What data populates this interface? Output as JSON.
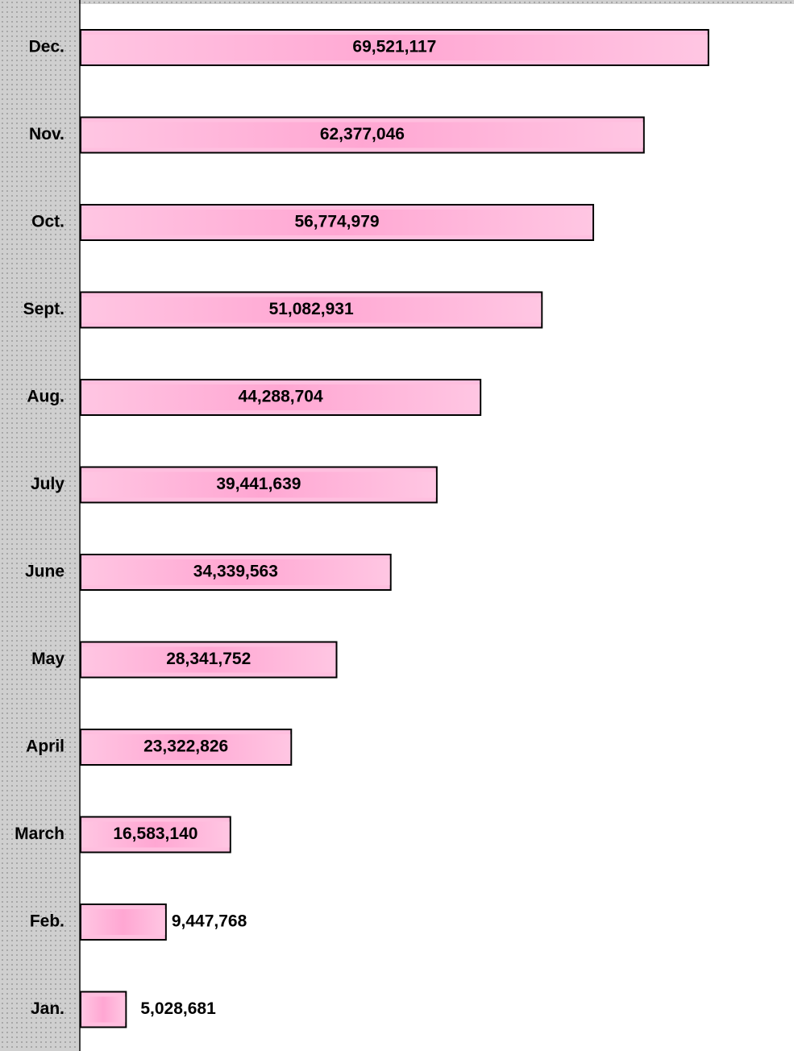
{
  "chart_data": {
    "type": "hbar",
    "categories": [
      "Dec.",
      "Nov.",
      "Oct.",
      "Sept.",
      "Aug.",
      "July",
      "June",
      "May",
      "April",
      "March",
      "Feb.",
      "Jan."
    ],
    "values": [
      69521117,
      62377046,
      56774979,
      51082931,
      44288704,
      39441639,
      34339563,
      28341752,
      23322826,
      16583140,
      9447768,
      5028681
    ],
    "value_labels": [
      "69,521,117",
      "62,377,046",
      "56,774,979",
      "51,082,931",
      "44,288,704",
      "39,441,639",
      "34,339,563",
      "28,341,752",
      "23,322,826",
      "16,583,140",
      "9,447,768",
      "5,028,681"
    ],
    "color": "#ffbfdf",
    "xlim": [
      0,
      79000000
    ]
  }
}
